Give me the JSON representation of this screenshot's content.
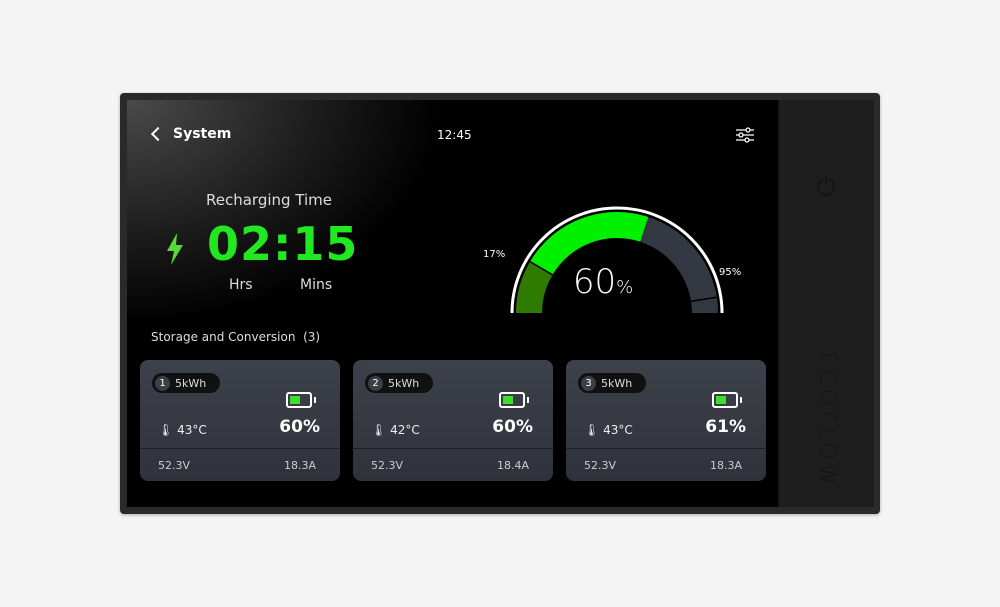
{
  "header": {
    "back_label": "System",
    "clock": "12:45",
    "settings_icon": "sliders-icon"
  },
  "recharge": {
    "title": "Recharging Time",
    "time": "02:15",
    "hours_label": "Hrs",
    "minutes_label": "Mins",
    "color": "#22e822"
  },
  "gauge": {
    "level_percent": 60,
    "value_label": "60",
    "unit": "%",
    "low_mark": 17,
    "low_label": "17%",
    "high_mark": 95,
    "high_label": "95%",
    "colors": {
      "fill": "#00f000",
      "low": "#2f7a00",
      "empty": "#343842"
    }
  },
  "section": {
    "title": "Storage and Conversion",
    "count": "(3)"
  },
  "batteries": [
    {
      "index": "1",
      "capacity": "5kWh",
      "temperature": "43°C",
      "charge": "60%",
      "charge_level": 60,
      "voltage": "52.3V",
      "current": "18.3A"
    },
    {
      "index": "2",
      "capacity": "5kWh",
      "temperature": "42°C",
      "charge": "60%",
      "charge_level": 60,
      "voltage": "52.3V",
      "current": "18.4A"
    },
    {
      "index": "3",
      "capacity": "5kWh",
      "temperature": "43°C",
      "charge": "61%",
      "charge_level": 61,
      "voltage": "52.3V",
      "current": "18.3A"
    }
  ],
  "device": {
    "brand": "ECOFLOW"
  }
}
